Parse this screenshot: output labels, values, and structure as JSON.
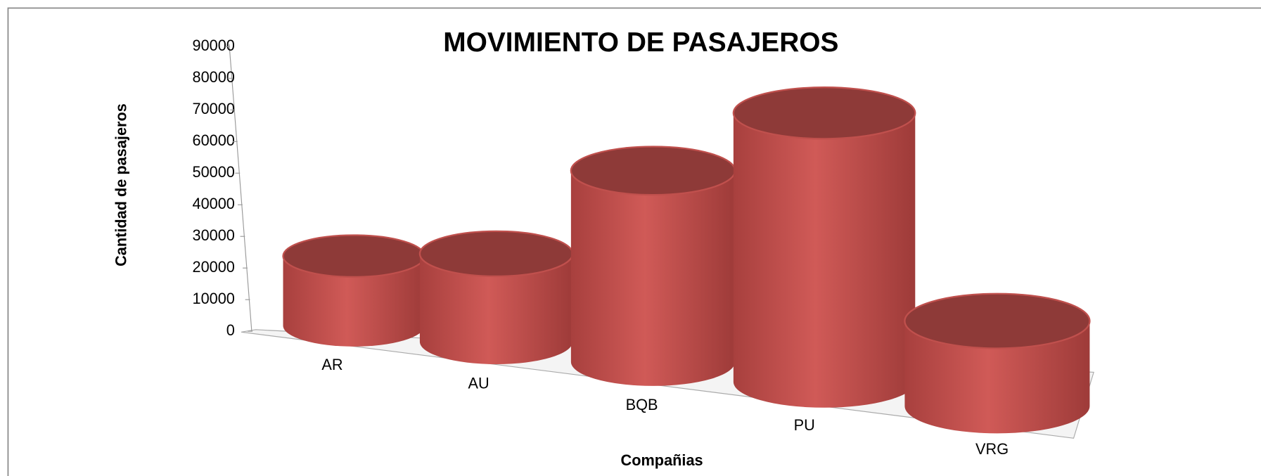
{
  "chart_data": {
    "type": "bar",
    "title": "MOVIMIENTO DE PASAJEROS",
    "x_label": "Compañias",
    "y_label": "Cantidad de pasajeros",
    "categories": [
      "AR",
      "AU",
      "BQB",
      "PU",
      "VRG"
    ],
    "values": [
      22000,
      27000,
      57000,
      78000,
      24000
    ],
    "color": "#c0504d",
    "ylim": [
      0,
      90000
    ],
    "yticks": [
      0,
      10000,
      20000,
      30000,
      40000,
      50000,
      60000,
      70000,
      80000,
      90000
    ]
  }
}
